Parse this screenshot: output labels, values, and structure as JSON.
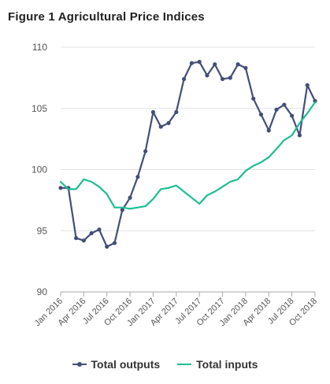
{
  "title": "Figure 1 Agricultural Price Indices",
  "chart_data": {
    "type": "line",
    "title": "Figure 1 Agricultural Price Indices",
    "xlabel": "",
    "ylabel": "",
    "ylim": [
      90,
      110
    ],
    "yticks": [
      90,
      95,
      100,
      105,
      110
    ],
    "grid": true,
    "legend_position": "bottom",
    "x": [
      "Jan 2016",
      "Feb 2016",
      "Mar 2016",
      "Apr 2016",
      "May 2016",
      "Jun 2016",
      "Jul 2016",
      "Aug 2016",
      "Sep 2016",
      "Oct 2016",
      "Nov 2016",
      "Dec 2016",
      "Jan 2017",
      "Feb 2017",
      "Mar 2017",
      "Apr 2017",
      "May 2017",
      "Jun 2017",
      "Jul 2017",
      "Aug 2017",
      "Sep 2017",
      "Oct 2017",
      "Nov 2017",
      "Dec 2017",
      "Jan 2018",
      "Feb 2018",
      "Mar 2018",
      "Apr 2018",
      "May 2018",
      "Jun 2018",
      "Jul 2018",
      "Aug 2018",
      "Sep 2018",
      "Oct 2018"
    ],
    "xtick_labels": [
      "Jan 2016",
      "Apr 2016",
      "Jul 2016",
      "Oct 2016",
      "Jan 2017",
      "Apr 2017",
      "Jul 2017",
      "Oct 2017",
      "Jan 2018",
      "Apr 2018",
      "Jul 2018",
      "Oct 2018"
    ],
    "series": [
      {
        "name": "Total outputs",
        "color": "#434e78",
        "marker": "circle",
        "values": [
          98.5,
          98.5,
          94.4,
          94.2,
          94.8,
          95.1,
          93.7,
          94.0,
          96.7,
          97.7,
          99.4,
          101.5,
          104.7,
          103.5,
          103.8,
          104.7,
          107.4,
          108.7,
          108.8,
          107.7,
          108.6,
          107.4,
          107.5,
          108.6,
          108.3,
          105.8,
          104.5,
          103.2,
          104.9,
          105.3,
          104.4,
          102.8,
          106.9,
          105.6
        ]
      },
      {
        "name": "Total inputs",
        "color": "#1dbe91",
        "marker": "none",
        "values": [
          99.0,
          98.4,
          98.4,
          99.2,
          99.0,
          98.6,
          98.0,
          96.9,
          96.9,
          96.8,
          96.9,
          97.0,
          97.6,
          98.4,
          98.5,
          98.7,
          98.2,
          97.7,
          97.2,
          97.9,
          98.2,
          98.6,
          99.0,
          99.2,
          99.9,
          100.3,
          100.6,
          101.0,
          101.7,
          102.4,
          102.8,
          103.8,
          104.6,
          105.5
        ]
      }
    ]
  }
}
